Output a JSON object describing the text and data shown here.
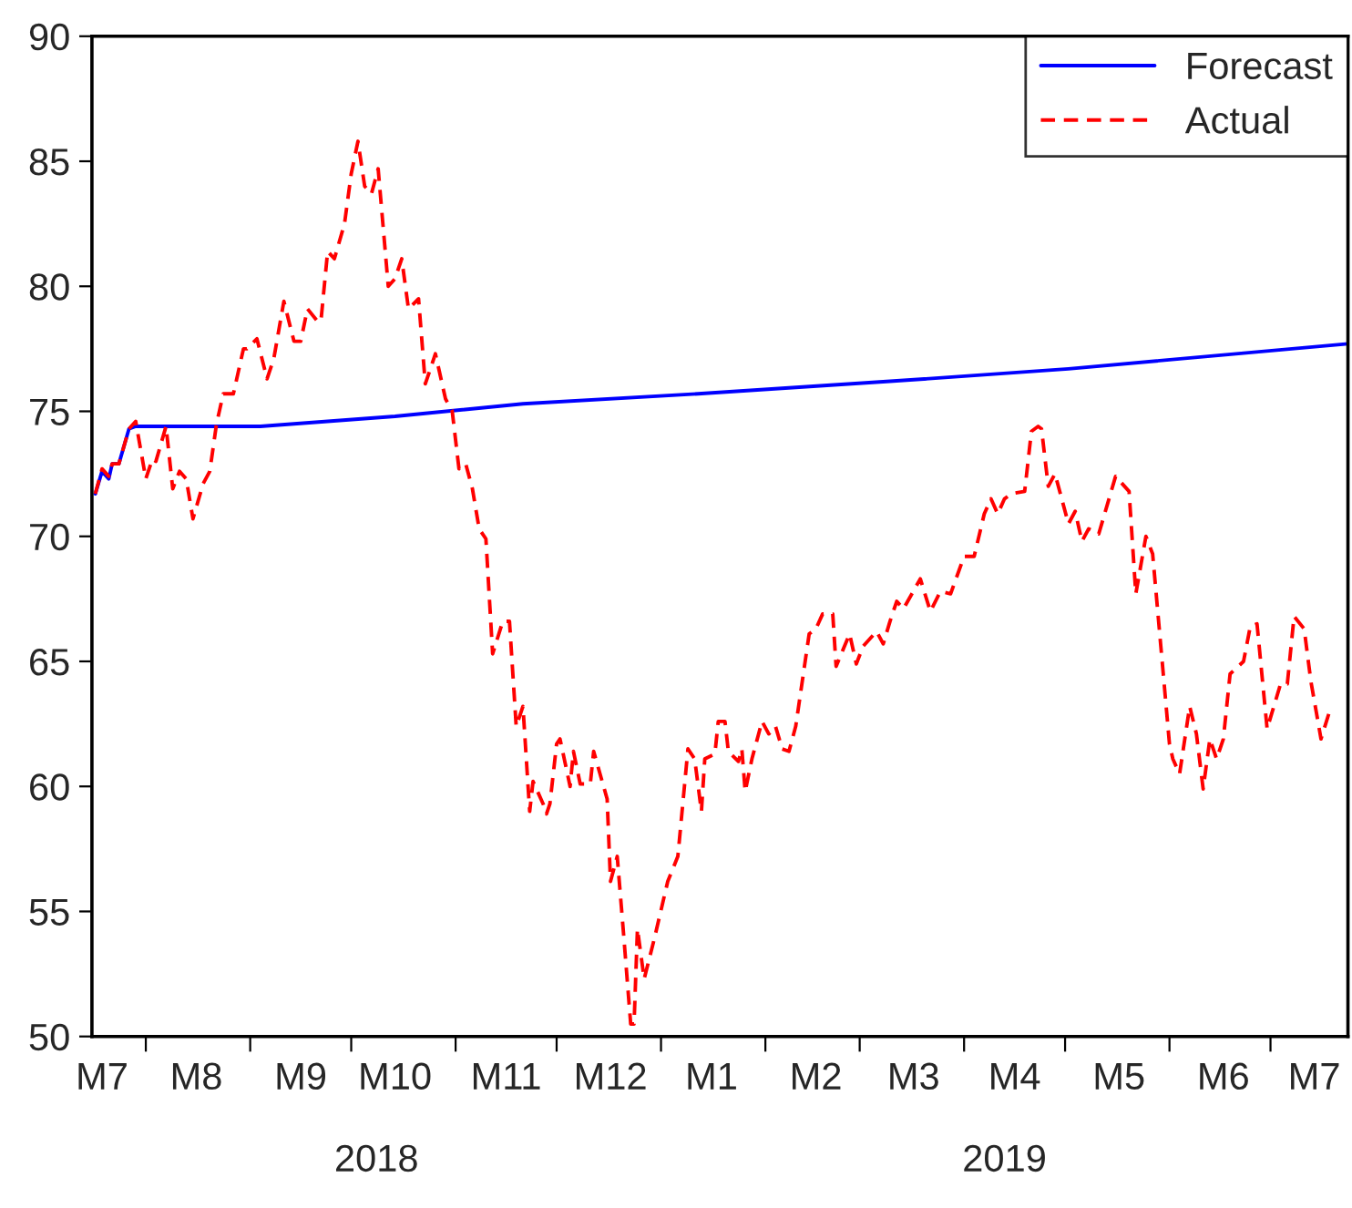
{
  "chart_data": {
    "type": "line",
    "x": [
      "2018-07-17",
      "2018-07-19",
      "2018-07-21",
      "2018-07-22",
      "2018-07-24",
      "2018-07-27",
      "2018-07-29",
      "2018-08-01",
      "2018-08-03",
      "2018-08-04",
      "2018-08-07",
      "2018-08-09",
      "2018-08-11",
      "2018-08-13",
      "2018-08-15",
      "2018-08-18",
      "2018-08-20",
      "2018-08-22",
      "2018-08-24",
      "2018-08-27",
      "2018-08-30",
      "2018-08-31",
      "2018-09-03",
      "2018-09-06",
      "2018-09-08",
      "2018-09-11",
      "2018-09-14",
      "2018-09-16",
      "2018-09-18",
      "2018-09-21",
      "2018-09-22",
      "2018-09-24",
      "2018-09-26",
      "2018-09-29",
      "2018-10-01",
      "2018-10-03",
      "2018-10-05",
      "2018-10-07",
      "2018-10-09",
      "2018-10-12",
      "2018-10-14",
      "2018-10-16",
      "2018-10-18",
      "2018-10-21",
      "2018-10-23",
      "2018-10-26",
      "2018-10-29",
      "2018-10-31",
      "2018-11-02",
      "2018-11-04",
      "2018-11-06",
      "2018-11-08",
      "2018-11-10",
      "2018-11-12",
      "2018-11-15",
      "2018-11-17",
      "2018-11-19",
      "2018-11-21",
      "2018-11-23",
      "2018-11-24",
      "2018-11-27",
      "2018-11-28",
      "2018-11-29",
      "2018-12-01",
      "2018-12-02",
      "2018-12-05",
      "2018-12-06",
      "2018-12-08",
      "2018-12-11",
      "2018-12-12",
      "2018-12-16",
      "2018-12-17",
      "2018-12-19",
      "2018-12-21",
      "2018-12-23",
      "2018-12-24",
      "2018-12-25",
      "2018-12-27",
      "2018-12-30",
      "2019-01-03",
      "2019-01-06",
      "2019-01-09",
      "2019-01-11",
      "2019-01-13",
      "2019-01-14",
      "2019-01-17",
      "2019-01-18",
      "2019-01-20",
      "2019-01-21",
      "2019-01-24",
      "2019-01-25",
      "2019-01-26",
      "2019-01-28",
      "2019-01-31",
      "2019-02-02",
      "2019-02-04",
      "2019-02-06",
      "2019-02-08",
      "2019-02-10",
      "2019-02-14",
      "2019-02-16",
      "2019-02-18",
      "2019-02-21",
      "2019-02-22",
      "2019-02-26",
      "2019-02-28",
      "2019-03-02",
      "2019-03-06",
      "2019-03-08",
      "2019-03-10",
      "2019-03-12",
      "2019-03-14",
      "2019-03-19",
      "2019-03-22",
      "2019-03-25",
      "2019-03-28",
      "2019-04-01",
      "2019-04-04",
      "2019-04-07",
      "2019-04-09",
      "2019-04-11",
      "2019-04-13",
      "2019-04-15",
      "2019-04-19",
      "2019-04-21",
      "2019-04-23",
      "2019-04-24",
      "2019-04-26",
      "2019-04-28",
      "2019-05-02",
      "2019-05-04",
      "2019-05-06",
      "2019-05-08",
      "2019-05-11",
      "2019-05-16",
      "2019-05-20",
      "2019-05-22",
      "2019-05-25",
      "2019-05-27",
      "2019-06-01",
      "2019-06-02",
      "2019-06-04",
      "2019-06-07",
      "2019-06-09",
      "2019-06-11",
      "2019-06-13",
      "2019-06-15",
      "2019-06-17",
      "2019-06-19",
      "2019-06-23",
      "2019-06-25",
      "2019-06-27",
      "2019-06-30",
      "2019-07-02",
      "2019-07-04",
      "2019-07-06",
      "2019-07-08",
      "2019-07-11",
      "2019-07-13",
      "2019-07-16",
      "2019-07-19"
    ],
    "series": [
      {
        "name": "Forecast",
        "color": "#0000ff",
        "line_style": "solid",
        "x": [
          "2018-07-17",
          "2018-07-19",
          "2018-07-21",
          "2018-07-22",
          "2018-07-24",
          "2018-07-27",
          "2018-07-29",
          "2018-09-04",
          "2018-10-14",
          "2018-11-21",
          "2019-01-12",
          "2019-03-10",
          "2019-05-02",
          "2019-07-24"
        ],
        "values": [
          71.7,
          72.6,
          72.3,
          72.9,
          72.9,
          74.3,
          74.4,
          74.4,
          74.8,
          75.3,
          75.7,
          76.2,
          76.7,
          77.7
        ]
      },
      {
        "name": "Actual",
        "color": "#ff0000",
        "line_style": "dashed",
        "values": [
          71.7,
          72.7,
          72.4,
          72.9,
          72.9,
          74.3,
          74.6,
          72.3,
          73.1,
          73.0,
          74.4,
          71.9,
          72.6,
          72.3,
          70.7,
          72.1,
          72.6,
          74.5,
          75.7,
          75.7,
          77.5,
          77.5,
          77.9,
          76.3,
          77.1,
          79.4,
          77.8,
          77.8,
          79.1,
          78.6,
          78.6,
          81.4,
          81.1,
          82.5,
          84.5,
          85.8,
          84.0,
          83.7,
          84.7,
          80.0,
          80.3,
          81.1,
          79.1,
          79.5,
          76.1,
          77.3,
          75.5,
          75.0,
          72.7,
          72.9,
          71.9,
          70.3,
          69.9,
          65.3,
          66.6,
          66.6,
          62.4,
          63.2,
          59.0,
          60.2,
          59.3,
          58.9,
          59.3,
          61.7,
          61.9,
          60.0,
          61.4,
          60.1,
          60.1,
          61.4,
          59.5,
          56.2,
          57.2,
          53.9,
          50.5,
          50.5,
          54.3,
          52.3,
          53.9,
          56.2,
          57.2,
          61.5,
          61.1,
          59.0,
          61.1,
          61.3,
          62.6,
          62.6,
          61.4,
          61.0,
          61.5,
          59.8,
          61.1,
          62.6,
          62.1,
          62.4,
          61.5,
          61.4,
          62.4,
          66.1,
          66.3,
          66.9,
          66.9,
          64.8,
          66.1,
          64.9,
          65.6,
          66.2,
          65.7,
          66.6,
          67.4,
          67.1,
          68.3,
          67.0,
          67.8,
          67.7,
          69.2,
          69.2,
          70.9,
          71.5,
          70.9,
          71.5,
          71.7,
          71.8,
          74.2,
          74.4,
          74.3,
          72.0,
          72.5,
          70.5,
          71.0,
          69.8,
          70.3,
          70.1,
          72.4,
          71.8,
          67.7,
          70.0,
          69.3,
          61.7,
          61.1,
          60.5,
          63.2,
          62.1,
          59.9,
          61.9,
          61.1,
          61.9,
          64.5,
          65.0,
          66.4,
          66.5,
          62.3,
          63.2,
          64.1,
          64.1,
          66.8,
          66.3,
          64.2,
          61.9,
          63.2
        ]
      }
    ],
    "xlim": [
      "2018-07-16",
      "2019-07-24"
    ],
    "xticks": [
      {
        "value": "2018-08-01",
        "label": null
      },
      {
        "value": "2018-09-01",
        "label": null
      },
      {
        "value": "2018-10-01",
        "label": null
      },
      {
        "value": "2018-11-01",
        "label": null
      },
      {
        "value": "2018-12-01",
        "label": null
      },
      {
        "value": "2019-01-01",
        "label": null
      },
      {
        "value": "2019-02-01",
        "label": null
      },
      {
        "value": "2019-03-01",
        "label": null
      },
      {
        "value": "2019-04-01",
        "label": null
      },
      {
        "value": "2019-05-01",
        "label": null
      },
      {
        "value": "2019-06-01",
        "label": null
      },
      {
        "value": "2019-07-01",
        "label": null
      },
      {
        "value": "2018-07-19",
        "label": "M7"
      },
      {
        "value": "2018-08-16",
        "label": "M8"
      },
      {
        "value": "2018-09-16",
        "label": "M9"
      },
      {
        "value": "2018-10-14",
        "label": "M10"
      },
      {
        "value": "2018-11-16",
        "label": "M11"
      },
      {
        "value": "2018-12-17",
        "label": "M12"
      },
      {
        "value": "2019-01-16",
        "label": "M1"
      },
      {
        "value": "2019-02-16",
        "label": "M2"
      },
      {
        "value": "2019-03-17",
        "label": "M3"
      },
      {
        "value": "2019-04-16",
        "label": "M4"
      },
      {
        "value": "2019-05-17",
        "label": "M5"
      },
      {
        "value": "2019-06-17",
        "label": "M6"
      },
      {
        "value": "2019-07-14",
        "label": "M7"
      }
    ],
    "ylim": [
      50,
      90
    ],
    "yticks": [
      50,
      55,
      60,
      65,
      70,
      75,
      80,
      85,
      90
    ],
    "annotations": [
      "2018",
      "2019"
    ],
    "grid": false,
    "legend": "top right",
    "marker": "none"
  }
}
